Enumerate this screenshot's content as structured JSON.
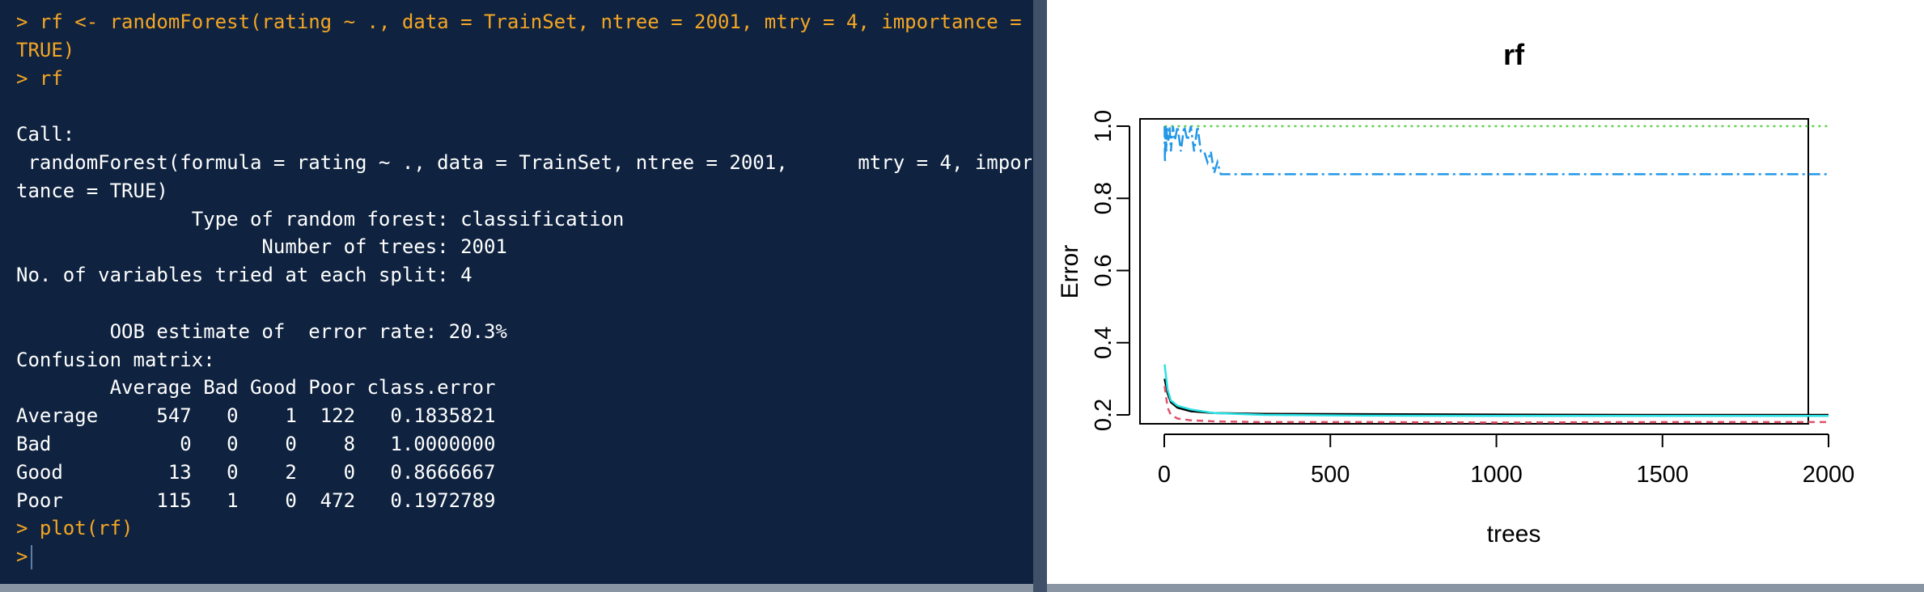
{
  "console": {
    "prompt": ">",
    "lines": [
      {
        "kind": "cmd",
        "text": "> rf <- randomForest(rating ~ ., data = TrainSet, ntree = 2001, mtry = 4, importance ="
      },
      {
        "kind": "cmd",
        "text": "TRUE)"
      },
      {
        "kind": "cmd",
        "text": "> rf"
      },
      {
        "kind": "out",
        "text": ""
      },
      {
        "kind": "out",
        "text": "Call:"
      },
      {
        "kind": "out",
        "text": " randomForest(formula = rating ~ ., data = TrainSet, ntree = 2001,      mtry = 4, impor"
      },
      {
        "kind": "out",
        "text": "tance = TRUE)"
      },
      {
        "kind": "out",
        "text": "               Type of random forest: classification"
      },
      {
        "kind": "out",
        "text": "                     Number of trees: 2001"
      },
      {
        "kind": "out",
        "text": "No. of variables tried at each split: 4"
      },
      {
        "kind": "out",
        "text": ""
      },
      {
        "kind": "out",
        "text": "        OOB estimate of  error rate: 20.3%"
      },
      {
        "kind": "out",
        "text": "Confusion matrix:"
      },
      {
        "kind": "out",
        "text": "        Average Bad Good Poor class.error"
      },
      {
        "kind": "out",
        "text": "Average     547   0    1  122   0.1835821"
      },
      {
        "kind": "out",
        "text": "Bad           0   0    0    8   1.0000000"
      },
      {
        "kind": "out",
        "text": "Good         13   0    2    0   0.8666667"
      },
      {
        "kind": "out",
        "text": "Poor        115   1    0  472   0.1972789"
      },
      {
        "kind": "cmd",
        "text": "> plot(rf)"
      }
    ]
  },
  "chart_data": {
    "type": "line",
    "title": "rf",
    "xlabel": "trees",
    "ylabel": "Error",
    "xlim": [
      0,
      2000
    ],
    "ylim": [
      0.17,
      1.02
    ],
    "xticks": [
      "0",
      "500",
      "1000",
      "1500",
      "2000"
    ],
    "yticks": [
      "0.2",
      "0.4",
      "0.6",
      "0.8",
      "1.0"
    ],
    "grid": false,
    "series": [
      {
        "color": "#000000",
        "dash": "",
        "x": [
          1,
          10,
          20,
          40,
          80,
          150,
          300,
          600,
          1000,
          1500,
          2000
        ],
        "y": [
          0.3,
          0.26,
          0.235,
          0.22,
          0.21,
          0.205,
          0.203,
          0.202,
          0.201,
          0.2,
          0.2
        ]
      },
      {
        "color": "#df536b",
        "dash": "8,6",
        "x": [
          1,
          10,
          20,
          40,
          80,
          150,
          300,
          600,
          1000,
          1500,
          2000
        ],
        "y": [
          0.28,
          0.22,
          0.2,
          0.19,
          0.185,
          0.182,
          0.18,
          0.18,
          0.179,
          0.18,
          0.18
        ]
      },
      {
        "color": "#61d04f",
        "dash": "3,5",
        "x": [
          1,
          2000
        ],
        "y": [
          1.0,
          1.0
        ]
      },
      {
        "color": "#2297e6",
        "dash": "14,5,3,5",
        "x": [
          1,
          2,
          4,
          6,
          8,
          12,
          16,
          20,
          26,
          32,
          40,
          50,
          60,
          70,
          80,
          90,
          100,
          110,
          120,
          130,
          140,
          150,
          160,
          170,
          2000
        ],
        "y": [
          1.0,
          0.9,
          1.0,
          0.93,
          1.0,
          0.96,
          1.0,
          0.93,
          1.0,
          0.96,
          1.0,
          0.93,
          1.0,
          0.96,
          1.0,
          0.93,
          1.0,
          0.93,
          0.93,
          0.9,
          0.93,
          0.87,
          0.9,
          0.867,
          0.867
        ]
      },
      {
        "color": "#28e2e5",
        "dash": "",
        "x": [
          1,
          10,
          20,
          40,
          80,
          150,
          300,
          600,
          1000,
          1500,
          2000
        ],
        "y": [
          0.34,
          0.27,
          0.24,
          0.225,
          0.215,
          0.205,
          0.2,
          0.198,
          0.197,
          0.197,
          0.197
        ]
      }
    ]
  }
}
